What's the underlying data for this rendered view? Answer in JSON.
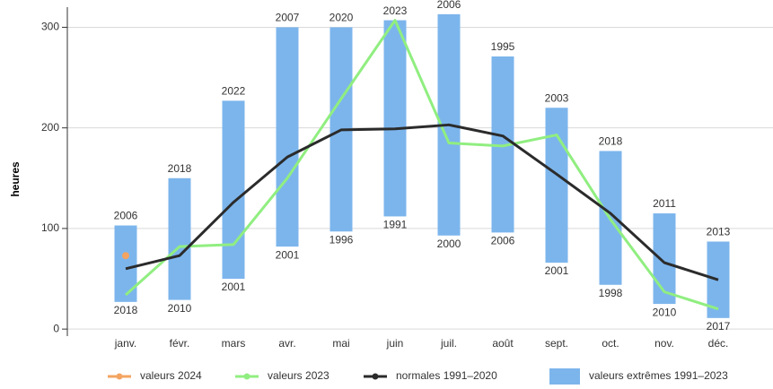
{
  "chart_data": {
    "type": "bar",
    "y_label": "heures",
    "categories": [
      "janv.",
      "févr.",
      "mars",
      "avr.",
      "mai",
      "juin",
      "juil.",
      "août",
      "sept.",
      "oct.",
      "nov.",
      "déc."
    ],
    "ylim": [
      -7,
      320
    ],
    "yticks": [
      0,
      100,
      200,
      300
    ],
    "grid": true,
    "legend": "bottom",
    "ranges": {
      "name": "valeurs extrêmes 1991–2023",
      "color": "#7cb5ec",
      "low": [
        27,
        29,
        50,
        82,
        97,
        112,
        93,
        96,
        66,
        44,
        25,
        11
      ],
      "high": [
        103,
        150,
        227,
        300,
        300,
        307,
        313,
        271,
        220,
        177,
        115,
        87
      ],
      "high_years": [
        "2006",
        "2018",
        "2022",
        "2007",
        "2020",
        "2023",
        "2006",
        "1995",
        "2003",
        "2018",
        "2011",
        "2013"
      ],
      "low_years": [
        "2018",
        "2010",
        "2001",
        "2001",
        "1996",
        "1991",
        "2000",
        "2006",
        "2001",
        "1998",
        "2010",
        "2017"
      ]
    },
    "series": [
      {
        "name": "valeurs 2024",
        "color": "#f4a460",
        "values": [
          73,
          null,
          null,
          null,
          null,
          null,
          null,
          null,
          null,
          null,
          null,
          null
        ]
      },
      {
        "name": "valeurs 2023",
        "color": "#90ee80",
        "values": [
          34,
          82,
          84,
          150,
          229,
          307,
          185,
          182,
          193,
          109,
          37,
          20
        ]
      },
      {
        "name": "normales 1991–2020",
        "color": "#2b2b2b",
        "values": [
          60,
          73,
          126,
          171,
          198,
          199,
          203,
          192,
          154,
          115,
          66,
          49
        ]
      }
    ]
  }
}
